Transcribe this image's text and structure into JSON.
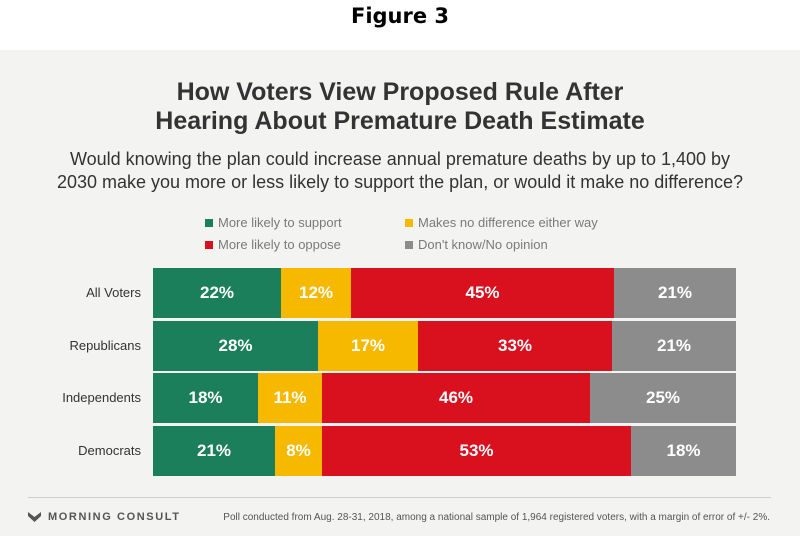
{
  "figure_label": "Figure 3",
  "chart_data": {
    "type": "bar",
    "title_lines": [
      "How Voters View Proposed Rule After",
      "Hearing About Premature Death Estimate"
    ],
    "subtitle_lines": [
      "Would knowing the plan could increase annual premature deaths by up to 1,400 by",
      "2030 make you more or less likely to support the plan, or would it make no difference?"
    ],
    "categories": [
      "All Voters",
      "Republicans",
      "Independents",
      "Democrats"
    ],
    "series": [
      {
        "name": "More likely to support",
        "color": "#1a7f5a",
        "values": [
          22,
          28,
          18,
          21
        ]
      },
      {
        "name": "Makes no difference either way",
        "color": "#f6b900",
        "values": [
          12,
          17,
          11,
          8
        ]
      },
      {
        "name": "More likely to oppose",
        "color": "#d9101e",
        "values": [
          45,
          33,
          46,
          53
        ]
      },
      {
        "name": "Don't know/No opinion",
        "color": "#8c8c8c",
        "values": [
          21,
          21,
          25,
          18
        ]
      }
    ],
    "stacked": true,
    "orientation": "horizontal",
    "xlim": [
      0,
      100
    ],
    "legend_position": "top"
  },
  "footer": {
    "brand": "MORNING CONSULT",
    "note": "Poll conducted from Aug. 28-31, 2018, among a national sample of 1,964 registered voters, with a margin of error of +/- 2%."
  }
}
